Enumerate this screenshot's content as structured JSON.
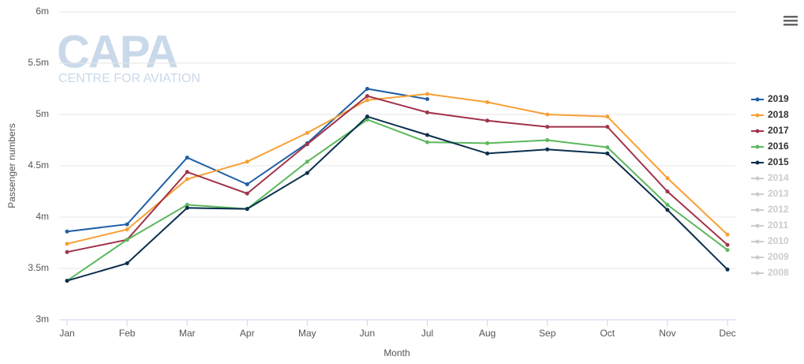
{
  "logo": {
    "name": "CAPA",
    "tagline": "CENTRE FOR AVIATION"
  },
  "chart_data": {
    "type": "line",
    "x_label": "Month",
    "y_label": "Passenger numbers",
    "categories": [
      "Jan",
      "Feb",
      "Mar",
      "Apr",
      "May",
      "Jun",
      "Jul",
      "Aug",
      "Sep",
      "Oct",
      "Nov",
      "Dec"
    ],
    "ylim": [
      3,
      6
    ],
    "yticks": [
      {
        "value": 3,
        "label": "3m"
      },
      {
        "value": 3.5,
        "label": "3.5m"
      },
      {
        "value": 4,
        "label": "4m"
      },
      {
        "value": 4.5,
        "label": "4.5m"
      },
      {
        "value": 5,
        "label": "5m"
      },
      {
        "value": 5.5,
        "label": "5.5m"
      },
      {
        "value": 6,
        "label": "6m"
      }
    ],
    "grid": true,
    "legend": "right",
    "series": [
      {
        "name": "2019",
        "color": "#1f5fa6",
        "values": [
          3.86,
          3.93,
          4.58,
          4.32,
          4.72,
          5.25,
          5.15,
          null,
          null,
          null,
          null,
          null
        ]
      },
      {
        "name": "2018",
        "color": "#f7a035",
        "values": [
          3.74,
          3.88,
          4.37,
          4.54,
          4.82,
          5.14,
          5.2,
          5.12,
          5.0,
          4.98,
          4.38,
          3.83
        ]
      },
      {
        "name": "2017",
        "color": "#a0334a",
        "values": [
          3.66,
          3.78,
          4.44,
          4.23,
          4.71,
          5.18,
          5.02,
          4.94,
          4.88,
          4.88,
          4.25,
          3.73
        ]
      },
      {
        "name": "2016",
        "color": "#5cb85c",
        "values": [
          3.38,
          3.78,
          4.12,
          4.08,
          4.54,
          4.95,
          4.73,
          4.72,
          4.75,
          4.68,
          4.12,
          3.68
        ]
      },
      {
        "name": "2015",
        "color": "#0b2f4d",
        "values": [
          3.38,
          3.55,
          4.09,
          4.08,
          4.43,
          4.98,
          4.8,
          4.62,
          4.66,
          4.62,
          4.07,
          3.49
        ]
      },
      {
        "name": "2014",
        "color": "#cccccc",
        "visible": false
      },
      {
        "name": "2013",
        "color": "#cccccc",
        "visible": false
      },
      {
        "name": "2012",
        "color": "#cccccc",
        "visible": false
      },
      {
        "name": "2011",
        "color": "#cccccc",
        "visible": false
      },
      {
        "name": "2010",
        "color": "#cccccc",
        "visible": false
      },
      {
        "name": "2009",
        "color": "#cccccc",
        "visible": false
      },
      {
        "name": "2008",
        "color": "#cccccc",
        "visible": false
      }
    ]
  }
}
